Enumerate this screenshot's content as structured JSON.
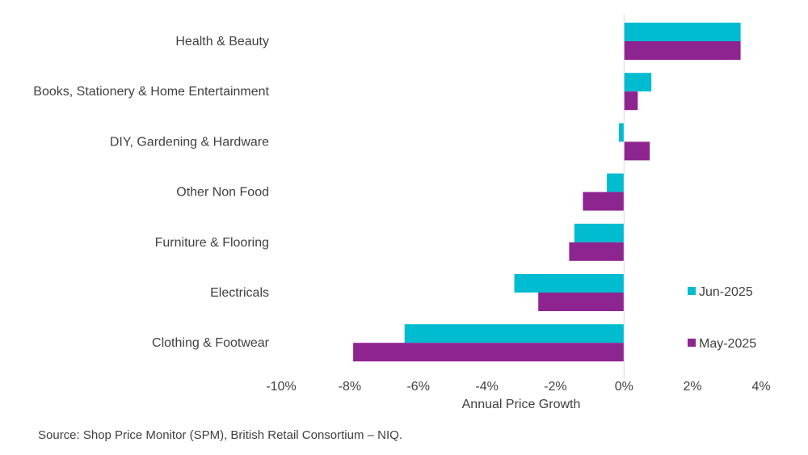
{
  "chart_data": {
    "type": "bar",
    "orientation": "horizontal",
    "title": "",
    "categories": [
      "Health & Beauty",
      "Books, Stationery & Home Entertainment",
      "DIY, Gardening & Hardware",
      "Other Non Food",
      "Furniture & Flooring",
      "Electricals",
      "Clothing & Footwear"
    ],
    "series": [
      {
        "name": "Jun-2025",
        "color": "#00bcd0",
        "values": [
          3.4,
          0.8,
          -0.15,
          -0.5,
          -1.45,
          -3.2,
          -6.4
        ]
      },
      {
        "name": "May-2025",
        "color": "#8e2490",
        "values": [
          3.4,
          0.4,
          0.75,
          -1.2,
          -1.6,
          -2.5,
          -7.9
        ]
      }
    ],
    "xlabel": "Annual Price Growth",
    "ylabel": "",
    "xlim": [
      -10,
      4
    ],
    "xticks": [
      -10,
      -8,
      -6,
      -4,
      -2,
      0,
      2,
      4
    ],
    "tick_labels": [
      "-10%",
      "-8%",
      "-6%",
      "-4%",
      "-2%",
      "0%",
      "2%",
      "4%"
    ],
    "legend_position": "right",
    "grid": false
  },
  "footer": {
    "source": "Source: Shop Price Monitor (SPM), British Retail Consortium – NIQ."
  }
}
